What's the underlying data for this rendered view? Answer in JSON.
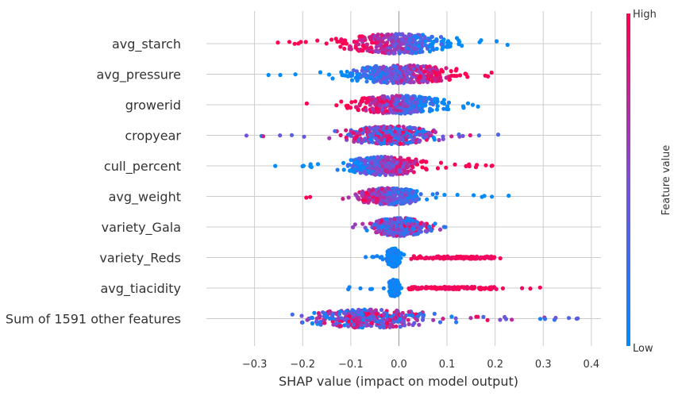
{
  "chart_data": {
    "type": "scatter",
    "subtype": "shap-beeswarm",
    "xlabel": "SHAP value (impact on model output)",
    "xlim": [
      -0.4,
      0.42
    ],
    "x_ticks": [
      -0.3,
      -0.2,
      -0.1,
      0.0,
      0.1,
      0.2,
      0.3,
      0.4
    ],
    "x_tick_labels": [
      "−0.3",
      "−0.2",
      "−0.1",
      "0.0",
      "0.1",
      "0.2",
      "0.3",
      "0.4"
    ],
    "grid": true,
    "colorbar": {
      "label": "Feature value",
      "high_label": "High",
      "low_label": "Low",
      "low_color": "#008bfb",
      "mid_color": "#7b4fd8",
      "high_color": "#ff0052"
    },
    "features": [
      {
        "name": "avg_starch",
        "x_min": -0.26,
        "x_max": 0.23,
        "core_min": -0.14,
        "core_max": 0.2,
        "peak": 0.0,
        "spread": 0.09,
        "width": 11,
        "color_trend": "high-negative"
      },
      {
        "name": "avg_pressure",
        "x_min": -0.28,
        "x_max": 0.26,
        "core_min": -0.2,
        "core_max": 0.22,
        "peak": 0.0,
        "spread": 0.09,
        "width": 10,
        "color_trend": "high-positive"
      },
      {
        "name": "growerid",
        "x_min": -0.22,
        "x_max": 0.17,
        "core_min": -0.17,
        "core_max": 0.15,
        "peak": 0.0,
        "spread": 0.07,
        "width": 10,
        "color_trend": "high-negative"
      },
      {
        "name": "cropyear",
        "x_min": -0.36,
        "x_max": 0.23,
        "core_min": -0.17,
        "core_max": 0.16,
        "peak": -0.02,
        "spread": 0.07,
        "width": 10,
        "color_trend": "mixed"
      },
      {
        "name": "cull_percent",
        "x_min": -0.27,
        "x_max": 0.2,
        "core_min": -0.12,
        "core_max": 0.19,
        "peak": -0.03,
        "spread": 0.06,
        "width": 10,
        "color_trend": "high-positive"
      },
      {
        "name": "avg_weight",
        "x_min": -0.2,
        "x_max": 0.24,
        "core_min": -0.13,
        "core_max": 0.16,
        "peak": -0.02,
        "spread": 0.05,
        "width": 9,
        "color_trend": "high-negative"
      },
      {
        "name": "variety_Gala",
        "x_min": -0.1,
        "x_max": 0.1,
        "core_min": -0.09,
        "core_max": 0.09,
        "peak": 0.0,
        "spread": 0.04,
        "width": 10,
        "color_trend": "mixed"
      },
      {
        "name": "variety_Reds",
        "x_min": -0.08,
        "x_max": 0.22,
        "core_min": -0.03,
        "core_max": 0.2,
        "peak": -0.01,
        "spread": 0.01,
        "width": 10,
        "color_trend": "split-high-right"
      },
      {
        "name": "avg_tiacidity",
        "x_min": -0.11,
        "x_max": 0.3,
        "core_min": -0.02,
        "core_max": 0.2,
        "peak": -0.01,
        "spread": 0.008,
        "width": 9,
        "color_trend": "split-high-right"
      },
      {
        "name": "Sum of 1591 other features",
        "x_min": -0.29,
        "x_max": 0.38,
        "core_min": -0.25,
        "core_max": 0.34,
        "peak": -0.06,
        "spread": 0.1,
        "width": 10,
        "color_trend": "mixed"
      }
    ]
  }
}
